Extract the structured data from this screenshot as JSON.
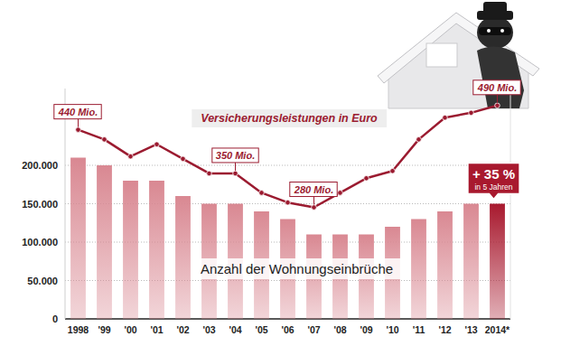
{
  "chart_data": {
    "type": "bar",
    "categories": [
      "1998",
      "'99",
      "'00",
      "'01",
      "'02",
      "'03",
      "'04",
      "'05",
      "'06",
      "'07",
      "'08",
      "'09",
      "'10",
      "'11",
      "'12",
      "'13",
      "2014*"
    ],
    "series": [
      {
        "name": "Anzahl der Wohnungseinbrüche",
        "type": "bar",
        "colors": [
          "#d98892",
          "#d98892",
          "#d98892",
          "#d98892",
          "#d98892",
          "#d98892",
          "#d98892",
          "#d98892",
          "#d98892",
          "#d98892",
          "#d98892",
          "#d98892",
          "#d98892",
          "#d98892",
          "#d98892",
          "#d98892",
          "#a8192e"
        ],
        "values": [
          210000,
          200000,
          180000,
          180000,
          160000,
          150000,
          150000,
          140000,
          130000,
          110000,
          110000,
          110000,
          120000,
          130000,
          140000,
          150000,
          150000
        ]
      },
      {
        "name": "Versicherungsleistungen in Euro",
        "type": "line",
        "axis": "y2",
        "color": "#9b1b30",
        "marker": "circle",
        "data_labels": true,
        "values": [
          440,
          420,
          385,
          410,
          380,
          350,
          350,
          310,
          290,
          280,
          310,
          340,
          355,
          420,
          465,
          475,
          490
        ],
        "value_labels": [
          "440 Mio.",
          null,
          null,
          null,
          null,
          null,
          "350 Mio.",
          null,
          null,
          "280 Mio.",
          null,
          null,
          null,
          null,
          null,
          null,
          "490 Mio."
        ]
      }
    ],
    "ylim": [
      0,
      300000
    ],
    "yticks": [
      0,
      {
        "value": 50000,
        "label": "50.000"
      },
      {
        "value": 100000,
        "label": "100.000"
      },
      {
        "value": 150000,
        "label": "150.000"
      },
      {
        "value": 200000,
        "label": "200.000"
      }
    ],
    "y2lim": [
      50,
      525
    ],
    "grid": true,
    "annotations": [
      {
        "text": "+ 35 %",
        "subtext": "in 5 Jahren"
      }
    ]
  }
}
